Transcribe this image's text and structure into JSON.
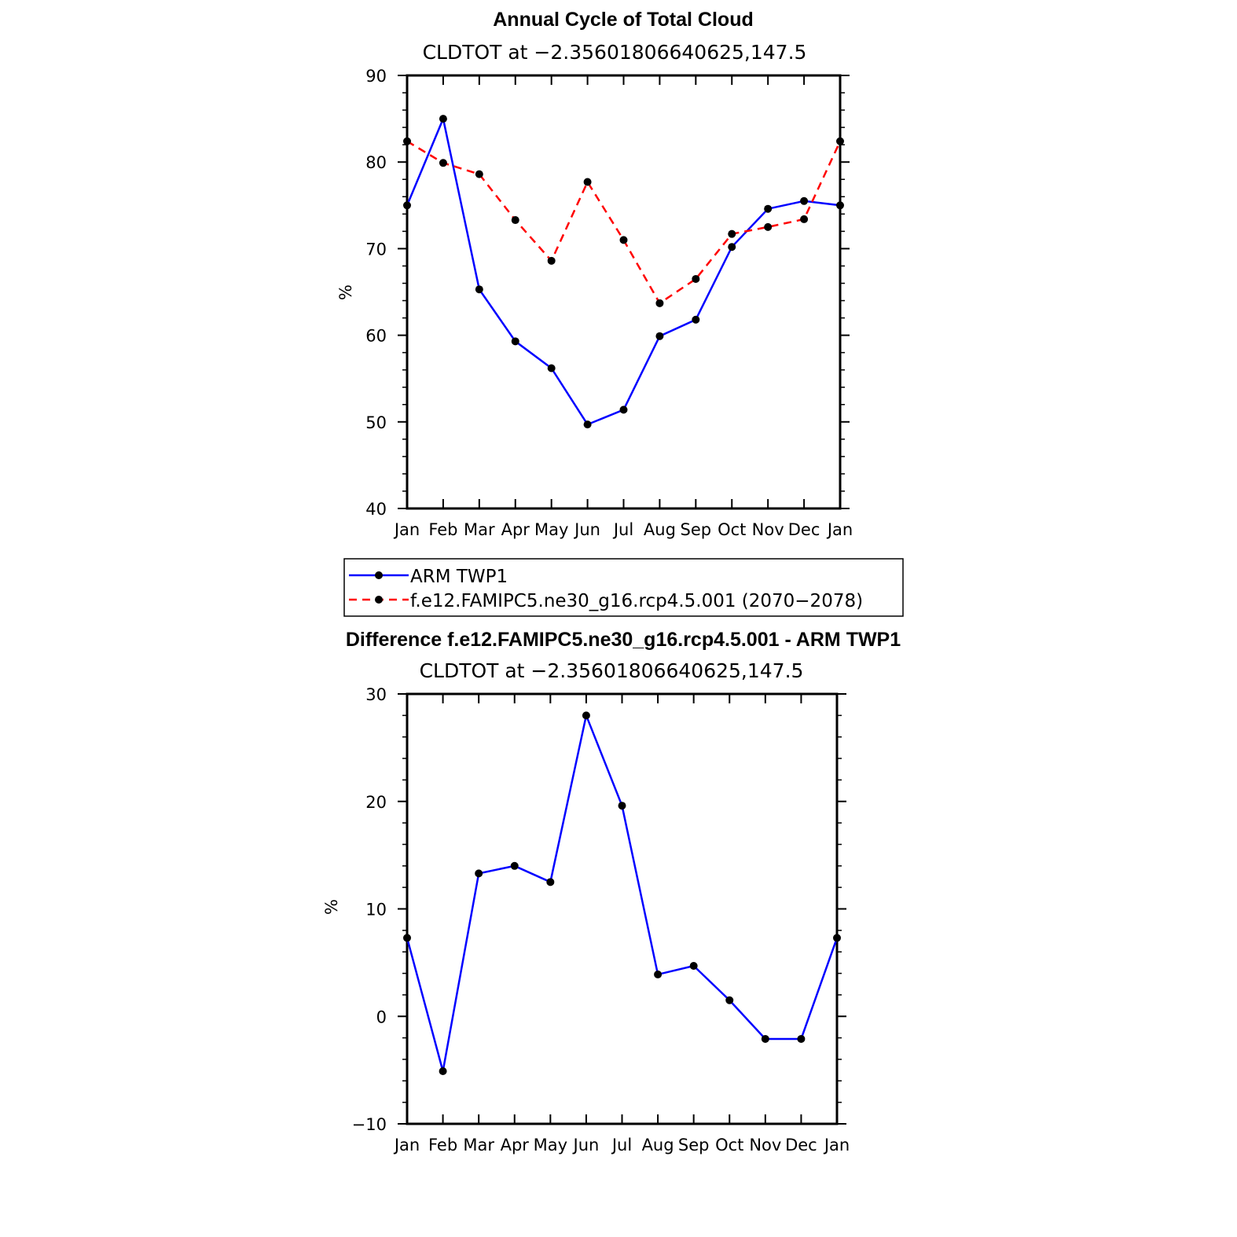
{
  "chart_data": [
    {
      "type": "line",
      "title": "Annual Cycle of Total Cloud",
      "subtitle": "CLDTOT at −2.35601806640625,147.5",
      "xlabel": "",
      "ylabel": "%",
      "categories": [
        "Jan",
        "Feb",
        "Mar",
        "Apr",
        "May",
        "Jun",
        "Jul",
        "Aug",
        "Sep",
        "Oct",
        "Nov",
        "Dec",
        "Jan"
      ],
      "ylim": [
        40,
        90
      ],
      "yticks": [
        40,
        50,
        60,
        70,
        80,
        90
      ],
      "series": [
        {
          "name": "ARM TWP1",
          "color": "#0000ff",
          "dashed": false,
          "values": [
            75.0,
            85.0,
            65.3,
            59.3,
            56.2,
            49.7,
            51.4,
            59.9,
            61.8,
            70.2,
            74.6,
            75.5,
            75.0
          ]
        },
        {
          "name": "f.e12.FAMIPC5.ne30_g16.rcp4.5.001 (2070−2078)",
          "color": "#ff0000",
          "dashed": true,
          "values": [
            82.4,
            79.9,
            78.6,
            73.3,
            68.6,
            77.7,
            71.0,
            63.7,
            66.5,
            71.7,
            72.5,
            73.4,
            82.4
          ]
        }
      ],
      "legend": "below"
    },
    {
      "type": "line",
      "title": "Difference f.e12.FAMIPC5.ne30_g16.rcp4.5.001 - ARM TWP1",
      "subtitle": "CLDTOT at −2.35601806640625,147.5",
      "xlabel": "",
      "ylabel": "%",
      "categories": [
        "Jan",
        "Feb",
        "Mar",
        "Apr",
        "May",
        "Jun",
        "Jul",
        "Aug",
        "Sep",
        "Oct",
        "Nov",
        "Dec",
        "Jan"
      ],
      "ylim": [
        -10,
        30
      ],
      "yticks": [
        -10,
        0,
        10,
        20,
        30
      ],
      "ytick_labels": [
        "−10",
        "0",
        "10",
        "20",
        "30"
      ],
      "series": [
        {
          "name": "Difference",
          "color": "#0000ff",
          "dashed": false,
          "values": [
            7.3,
            -5.1,
            13.3,
            14.0,
            12.5,
            28.0,
            19.6,
            3.9,
            4.7,
            1.5,
            -2.1,
            -2.1,
            7.3
          ]
        }
      ]
    }
  ]
}
